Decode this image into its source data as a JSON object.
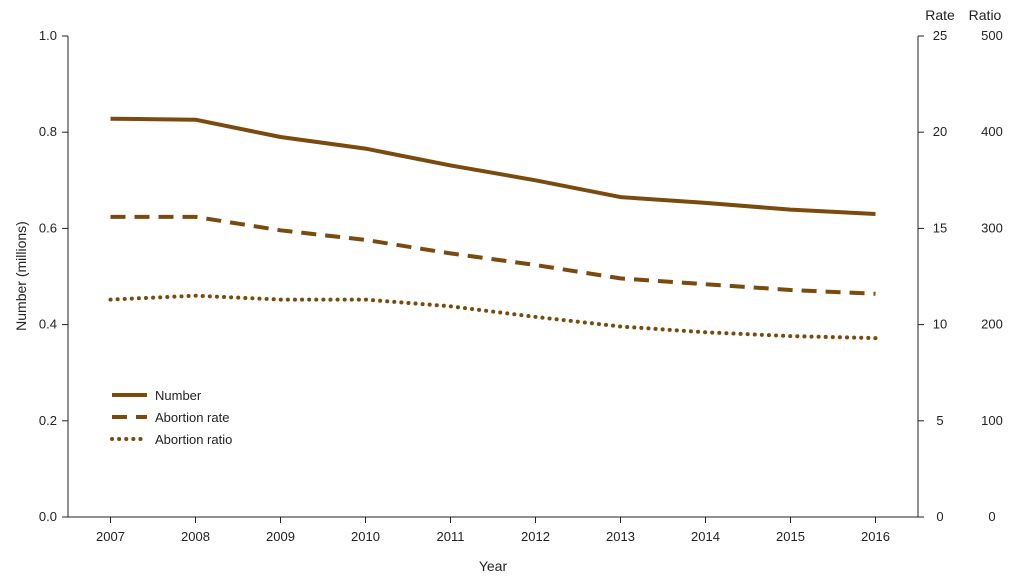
{
  "chart_data": {
    "type": "line",
    "title": "",
    "xlabel": "Year",
    "ylabel": "Number (millions)",
    "y2_label": "Rate",
    "y3_label": "Ratio",
    "x": [
      "2007",
      "2008",
      "2009",
      "2010",
      "2011",
      "2012",
      "2013",
      "2014",
      "2015",
      "2016"
    ],
    "ylim": [
      0,
      1.0
    ],
    "y_ticks": [
      "0.0",
      "0.2",
      "0.4",
      "0.6",
      "0.8",
      "1.0"
    ],
    "y2lim": [
      0,
      25
    ],
    "y2_ticks": [
      "0",
      "5",
      "10",
      "15",
      "20",
      "25"
    ],
    "y3lim": [
      0,
      500
    ],
    "y3_ticks": [
      "0",
      "100",
      "200",
      "300",
      "400",
      "500"
    ],
    "grid": false,
    "legend_position": "bottom-left",
    "color": "#7a4a0f",
    "series": [
      {
        "name": "Number",
        "axis": "left",
        "style": "solid",
        "values": [
          0.828,
          0.826,
          0.79,
          0.766,
          0.731,
          0.7,
          0.665,
          0.653,
          0.639,
          0.63
        ]
      },
      {
        "name": "Abortion rate",
        "axis": "rate",
        "style": "dashed",
        "values": [
          15.6,
          15.6,
          14.9,
          14.4,
          13.7,
          13.1,
          12.4,
          12.1,
          11.8,
          11.6
        ]
      },
      {
        "name": "Abortion ratio",
        "axis": "ratio",
        "style": "dotted",
        "values": [
          226,
          230,
          226,
          226,
          219,
          208,
          198,
          192,
          188,
          186
        ]
      }
    ]
  }
}
